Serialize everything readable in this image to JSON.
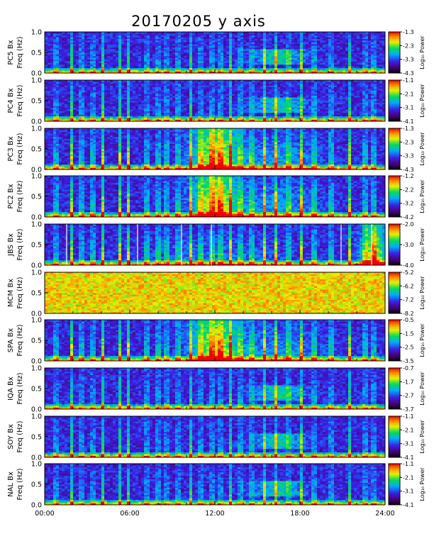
{
  "title": "20170205 y axis",
  "chart_data": {
    "type": "heatmap",
    "title": "20170205 y axis",
    "x_tick_labels": [
      "00:00",
      "06:00",
      "12:00",
      "18:00",
      "24:00"
    ],
    "x_range_hours": [
      0,
      24
    ],
    "y_tick_labels": [
      "0.0",
      "0.5",
      "1.0"
    ],
    "y_range_hz": [
      0,
      1.0
    ],
    "colorbar_label": "Log₁₀ Power",
    "panels": [
      {
        "station_label": "PC5 Bx",
        "freq_label": "Freq (Hz)",
        "colorbar_ticks": [
          "-1.3",
          "-2.3",
          "-3.3",
          "-4.3"
        ],
        "clim": [
          -4.3,
          -1.3
        ],
        "mode": "quiet",
        "vertical_lines": [],
        "white_lines": []
      },
      {
        "station_label": "PC4 Bx",
        "freq_label": "Freq (Hz)",
        "colorbar_ticks": [
          "-1.1",
          "-2.1",
          "-3.1",
          "-4.1"
        ],
        "clim": [
          -4.1,
          -1.1
        ],
        "mode": "quiet",
        "vertical_lines": [],
        "white_lines": []
      },
      {
        "station_label": "PC3 Bx",
        "freq_label": "Freq (Hz)",
        "colorbar_ticks": [
          "-1.3",
          "-2.3",
          "-3.3",
          "-4.3"
        ],
        "clim": [
          -4.3,
          -1.3
        ],
        "mode": "active",
        "vertical_lines": [],
        "white_lines": []
      },
      {
        "station_label": "PC2 Bx",
        "freq_label": "Freq (Hz)",
        "colorbar_ticks": [
          "-1.2",
          "-2.2",
          "-3.2",
          "-4.2"
        ],
        "clim": [
          -4.2,
          -1.2
        ],
        "mode": "active",
        "vertical_lines": [],
        "white_lines": []
      },
      {
        "station_label": "JBS Bx",
        "freq_label": "Freq (Hz)",
        "colorbar_ticks": [
          "-2.0",
          "-3.0",
          "-4.0"
        ],
        "clim": [
          -4.0,
          -2.0
        ],
        "mode": "jbs",
        "vertical_lines": [],
        "white_lines": [
          1.55,
          6.55,
          9.65,
          11.75,
          20.9,
          23.05
        ]
      },
      {
        "station_label": "MCM Bx",
        "freq_label": "Freq (Hz)",
        "colorbar_ticks": [
          "-5.2",
          "-6.2",
          "-7.2",
          "-8.2"
        ],
        "clim": [
          -8.2,
          -5.2
        ],
        "mode": "noise",
        "vertical_lines": [],
        "white_lines": []
      },
      {
        "station_label": "SPA Bx",
        "freq_label": "Freq (Hz)",
        "colorbar_ticks": [
          "-0.5",
          "-1.5",
          "-2.5",
          "-3.5"
        ],
        "clim": [
          -3.5,
          -0.5
        ],
        "mode": "active",
        "vertical_lines": [],
        "white_lines": []
      },
      {
        "station_label": "IQA Bx",
        "freq_label": "Freq (Hz)",
        "colorbar_ticks": [
          "-0.7",
          "-1.7",
          "-2.7",
          "-3.7"
        ],
        "clim": [
          -3.7,
          -0.7
        ],
        "mode": "quiet",
        "vertical_lines": [],
        "white_lines": []
      },
      {
        "station_label": "SOY Bx",
        "freq_label": "Freq (Hz)",
        "colorbar_ticks": [
          "-1.1",
          "-2.1",
          "-3.1",
          "-4.1"
        ],
        "clim": [
          -4.1,
          -1.1
        ],
        "mode": "quiet",
        "vertical_lines": [],
        "white_lines": []
      },
      {
        "station_label": "NAL Bx",
        "freq_label": "Freq (Hz)",
        "colorbar_ticks": [
          "-1.1",
          "-2.1",
          "-3.1",
          "-4.1"
        ],
        "clim": [
          -4.1,
          -1.1
        ],
        "mode": "quiet",
        "vertical_lines": [],
        "white_lines": []
      }
    ]
  }
}
